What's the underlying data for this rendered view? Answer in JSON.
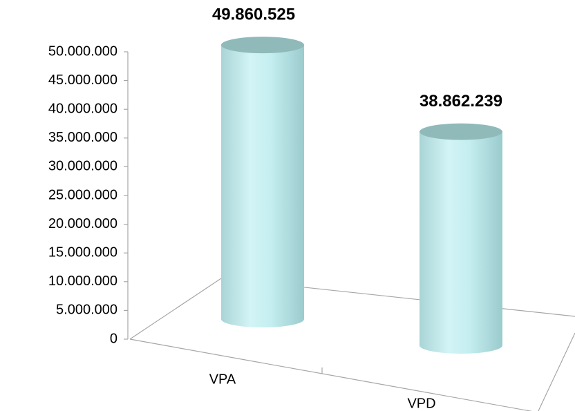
{
  "chart_data": {
    "type": "bar3d",
    "categories": [
      "VPA",
      "VPD"
    ],
    "values": [
      49860525,
      38862239
    ],
    "value_labels": [
      "49.860.525",
      "38.862.239"
    ],
    "color": "#c4eef0",
    "ylim": [
      0,
      50000000
    ],
    "yticks": [
      0,
      {
        "value": 5000000,
        "label": "5.000.000"
      },
      {
        "value": 10000000,
        "label": "10.000.000"
      },
      {
        "value": 15000000,
        "label": "15.000.000"
      },
      {
        "value": 20000000,
        "label": "20.000.000"
      },
      {
        "value": 25000000,
        "label": "25.000.000"
      },
      {
        "value": 30000000,
        "label": "30.000.000"
      },
      {
        "value": 35000000,
        "label": "35.000.000"
      },
      {
        "value": 40000000,
        "label": "40.000.000"
      },
      {
        "value": 45000000,
        "label": "45.000.000"
      },
      {
        "value": 50000000,
        "label": "50.000.000"
      }
    ]
  }
}
